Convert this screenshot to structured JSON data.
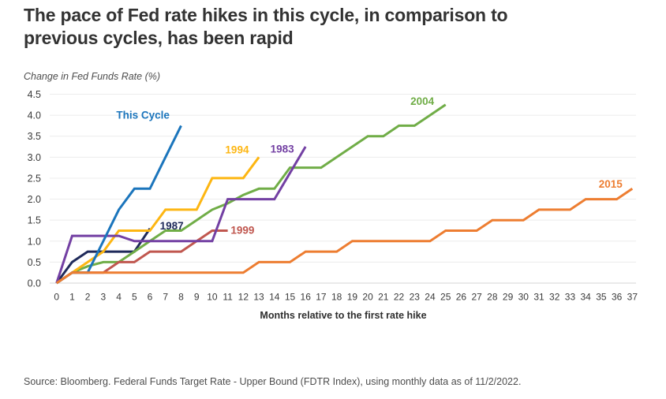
{
  "header": {
    "title_line1": "The pace of Fed rate hikes in this cycle, in comparison to",
    "title_line2": "previous cycles, has been rapid"
  },
  "chart": {
    "unit_label": "Change in Fed Funds Rate (%)",
    "x_label": "Months relative to the first rate hike"
  },
  "footer": {
    "source": "Source: Bloomberg. Federal Funds Target Rate - Upper Bound (FDTR Index), using monthly data as of 11/2/2022."
  },
  "chart_data": {
    "type": "line",
    "title": "The pace of Fed rate hikes in this cycle, in comparison to previous cycles, has been rapid",
    "xlabel": "Months relative to the first rate hike",
    "ylabel": "Change in Fed Funds Rate (%)",
    "xlim": [
      0,
      37
    ],
    "ylim": [
      0,
      4.5
    ],
    "grid": true,
    "legend_position": "inline-labels",
    "x_ticks": [
      0,
      1,
      2,
      3,
      4,
      5,
      6,
      7,
      8,
      9,
      10,
      11,
      12,
      13,
      14,
      15,
      16,
      17,
      18,
      19,
      20,
      21,
      22,
      23,
      24,
      25,
      26,
      27,
      28,
      29,
      30,
      31,
      32,
      33,
      34,
      35,
      36,
      37
    ],
    "y_ticks": [
      "0.0",
      "0.5",
      "1.0",
      "1.5",
      "2.0",
      "2.5",
      "3.0",
      "3.5",
      "4.0",
      "4.5"
    ],
    "series": [
      {
        "name": "1987",
        "color": "#1f2a5a",
        "label_pos": {
          "month": 7.4,
          "value": 1.36
        },
        "start_month": 0,
        "values": [
          0,
          0.5,
          0.75,
          0.75,
          0.75,
          0.75,
          1.3
        ]
      },
      {
        "name": "2004",
        "color": "#70ad47",
        "label_pos": {
          "month": 23.5,
          "value": 4.33
        },
        "start_month": 0,
        "values": [
          0,
          0.25,
          0.4,
          0.5,
          0.5,
          0.75,
          1.0,
          1.25,
          1.25,
          1.5,
          1.75,
          1.9,
          2.1,
          2.25,
          2.25,
          2.75,
          2.75,
          2.75,
          3.0,
          3.25,
          3.5,
          3.5,
          3.75,
          3.75,
          4.0,
          4.25
        ]
      },
      {
        "name": "1994",
        "color": "#fdb612",
        "label_pos": {
          "month": 11.6,
          "value": 3.18
        },
        "start_month": 0,
        "values": [
          0,
          0.25,
          0.5,
          0.75,
          1.25,
          1.25,
          1.25,
          1.75,
          1.75,
          1.75,
          2.5,
          2.5,
          2.5,
          3.0
        ]
      },
      {
        "name": "1999",
        "color": "#c0574f",
        "label_pos": {
          "month": 11.95,
          "value": 1.26
        },
        "start_month": 0,
        "values": [
          0,
          0.25,
          0.25,
          0.25,
          0.5,
          0.5,
          0.75,
          0.75,
          0.75,
          1.0,
          1.25,
          1.25
        ]
      },
      {
        "name": "1983",
        "color": "#7340a3",
        "label_pos": {
          "month": 14.5,
          "value": 3.19
        },
        "start_month": 0,
        "values": [
          0,
          1.125,
          1.125,
          1.125,
          1.125,
          1.0,
          1.0,
          1.0,
          1.0,
          1.0,
          1.0,
          2.0,
          2.0,
          2.0,
          2.0,
          2.625,
          3.25
        ]
      },
      {
        "name": "This Cycle",
        "color": "#1b75bc",
        "label_pos": {
          "month": 5.55,
          "value": 4.0
        },
        "start_month": 0,
        "values": [
          0,
          0.25,
          0.25,
          1.0,
          1.75,
          2.25,
          2.25,
          3.0,
          3.75
        ]
      },
      {
        "name": "2015",
        "color": "#ed7d31",
        "label_pos": {
          "month": 35.6,
          "value": 2.36
        },
        "start_month": 0,
        "values": [
          0,
          0.25,
          0.25,
          0.25,
          0.25,
          0.25,
          0.25,
          0.25,
          0.25,
          0.25,
          0.25,
          0.25,
          0.25,
          0.5,
          0.5,
          0.5,
          0.75,
          0.75,
          0.75,
          1.0,
          1.0,
          1.0,
          1.0,
          1.0,
          1.0,
          1.25,
          1.25,
          1.25,
          1.5,
          1.5,
          1.5,
          1.75,
          1.75,
          1.75,
          2.0,
          2.0,
          2.0,
          2.25
        ]
      }
    ]
  }
}
